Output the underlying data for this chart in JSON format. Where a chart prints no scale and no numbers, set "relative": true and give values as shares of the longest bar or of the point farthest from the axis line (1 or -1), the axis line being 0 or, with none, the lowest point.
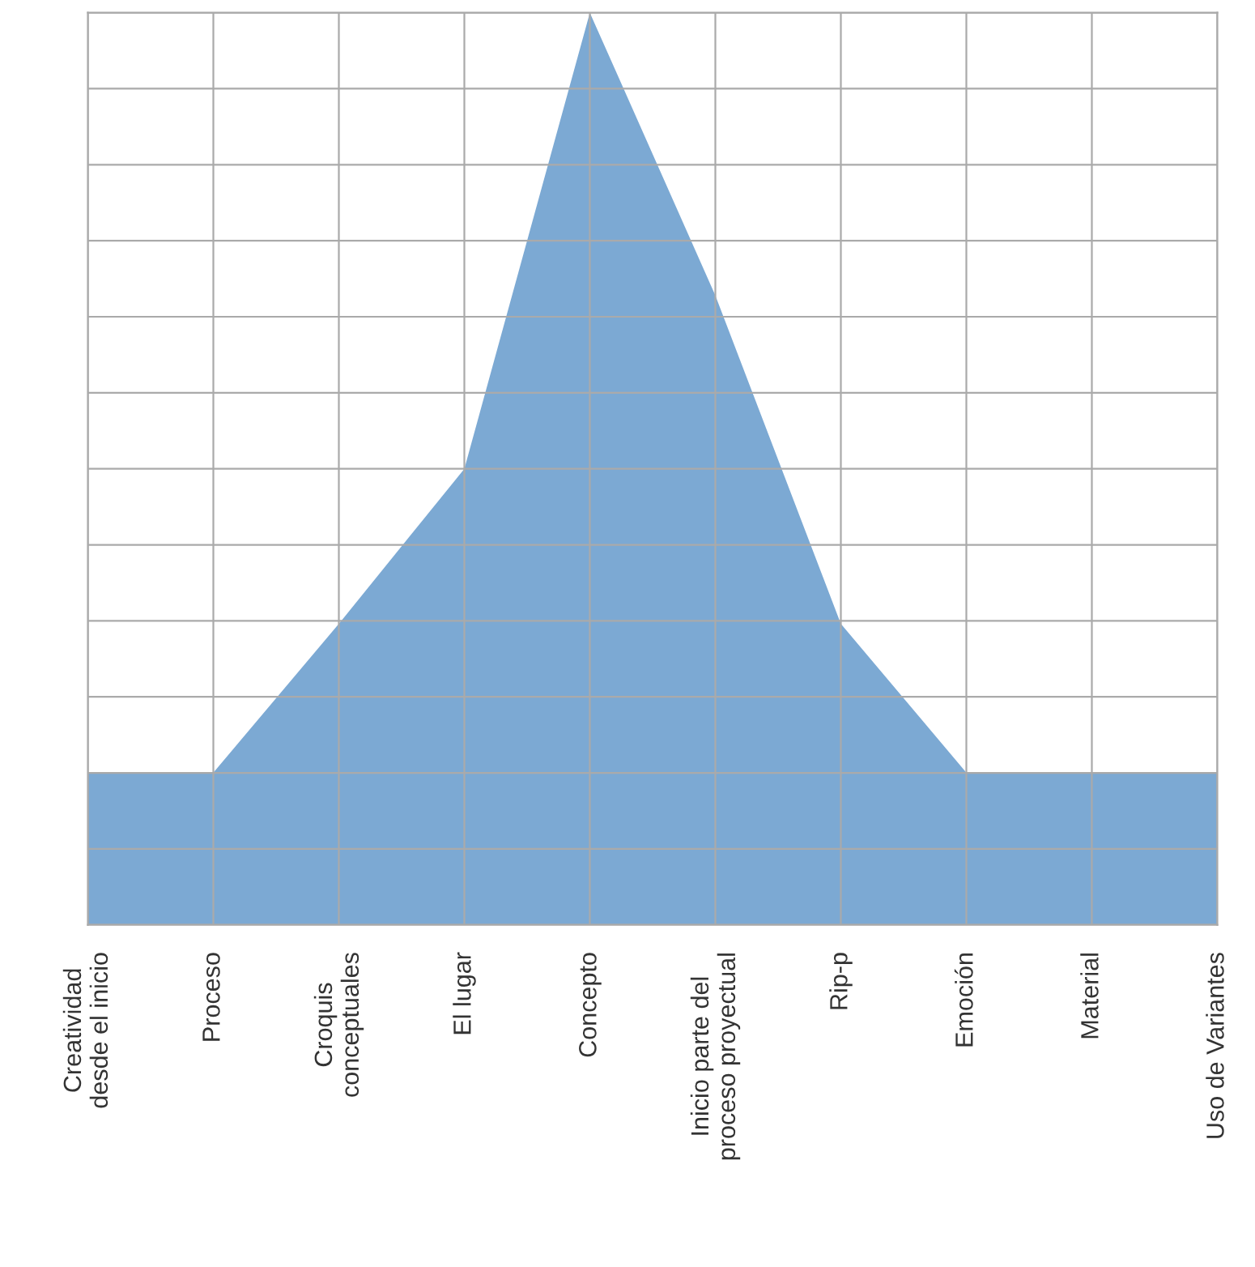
{
  "chart_data": {
    "type": "area",
    "relative": true,
    "grid": true,
    "categories": [
      "Creatividad\ndesde el inicio",
      "Proceso",
      "Croquis\nconceptuales",
      "El lugar",
      "Concepto",
      "Inicio parte del\nproceso proyectual",
      "Rip-p",
      "Emoción",
      "Material",
      "Uso de Variantes"
    ],
    "series": [
      {
        "color": "#5b93c8",
        "values": [
          0.167,
          0.167,
          0.33,
          0.5,
          1,
          0.69,
          0.33,
          0.167,
          0.167,
          0.167
        ]
      }
    ]
  }
}
